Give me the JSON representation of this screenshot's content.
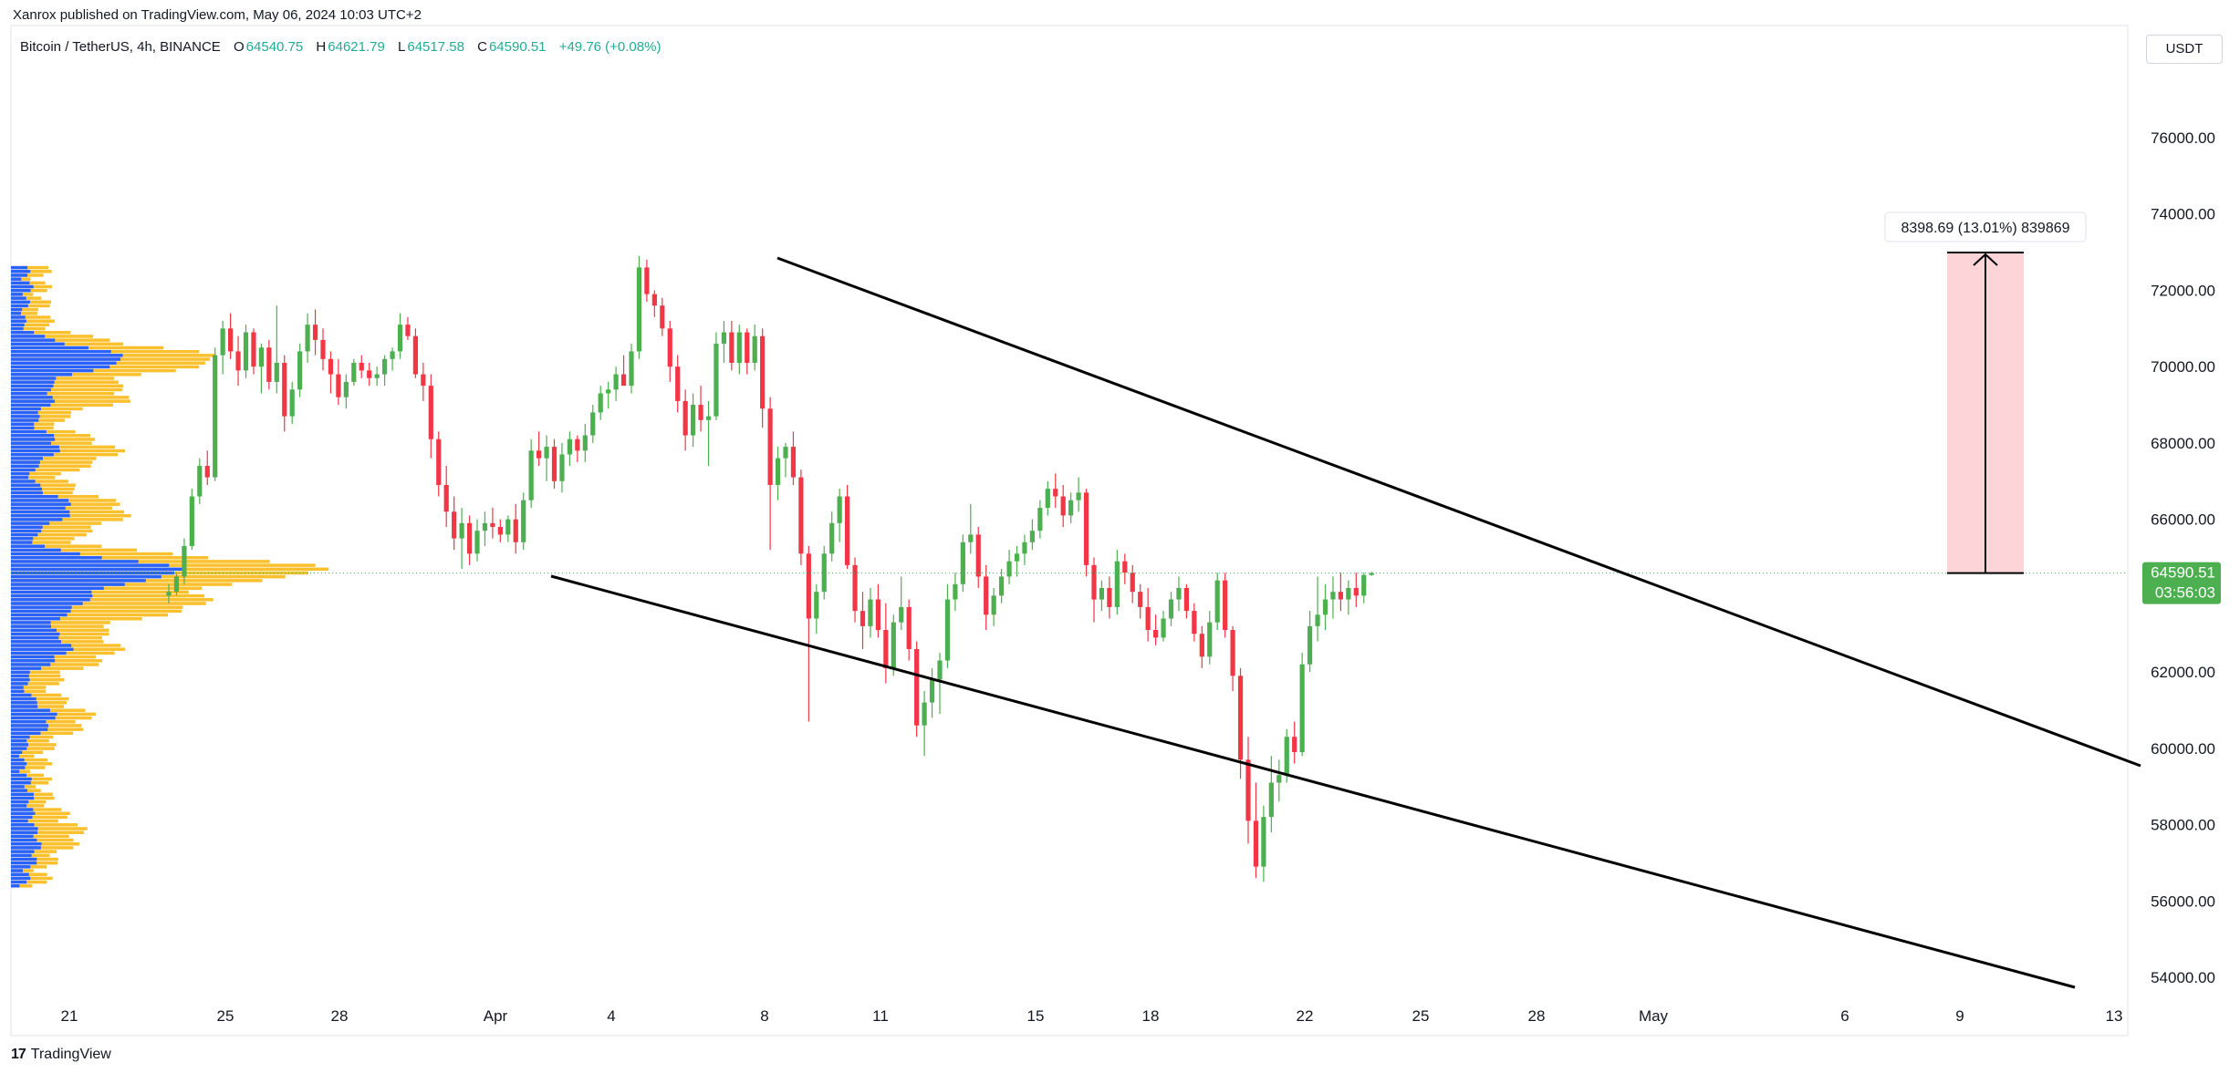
{
  "publisher_line": "Xanrox published on TradingView.com, May 06, 2024 10:03 UTC+2",
  "legend": {
    "symbol": "Bitcoin / TetherUS, 4h, BINANCE",
    "open_label": "O",
    "open": "64540.75",
    "high_label": "H",
    "high": "64621.79",
    "low_label": "L",
    "low": "64517.58",
    "close_label": "C",
    "close": "64590.51",
    "change": "+49.76 (+0.08%)"
  },
  "currency_button": "USDT",
  "footer_brand": "TradingView",
  "colors": {
    "up": "#22ab94",
    "up_candle": "#4caf50",
    "down_candle": "#f23645",
    "volume_profile_up": "#2962ff",
    "volume_profile_down": "#fbc02d",
    "measure_fill": "#fdd4d8",
    "price_tag": "#4caf50",
    "trendline": "#000000"
  },
  "chart_data": {
    "type": "candlestick",
    "timeframe": "4h",
    "y_axis": {
      "ticks": [
        "76000.00",
        "74000.00",
        "72000.00",
        "70000.00",
        "68000.00",
        "66000.00",
        "62000.00",
        "60000.00",
        "58000.00",
        "56000.00",
        "54000.00"
      ],
      "min": 53500,
      "max": 78000
    },
    "x_axis": {
      "ticks": [
        "21",
        "25",
        "28",
        "Apr",
        "4",
        "8",
        "11",
        "15",
        "18",
        "22",
        "25",
        "28",
        "May",
        "6",
        "9",
        "13"
      ]
    },
    "last_price": {
      "label": "64590.51",
      "countdown": "03:56:03",
      "value": 64590.51
    },
    "measure": {
      "label": "8398.69 (13.01%) 839869",
      "from": 64590.51,
      "to": 72989.2
    },
    "trendlines": [
      {
        "name": "upper-channel",
        "points": [
          [
            8.3,
            72900
          ],
          [
            24.0,
            66800
          ],
          [
            6.9,
            63200
          ],
          [
            10.2,
            59600
          ]
        ]
      },
      {
        "name": "lower-channel",
        "points": [
          [
            2.6,
            64500
          ],
          [
            18.2,
            60000
          ],
          [
            3.2,
            56600
          ],
          [
            12.7,
            53700
          ]
        ]
      }
    ],
    "candles": [
      [
        64000,
        64300,
        63800,
        64100
      ],
      [
        64100,
        64600,
        64000,
        64500
      ],
      [
        64500,
        65500,
        64300,
        65300
      ],
      [
        65300,
        66800,
        65200,
        66600
      ],
      [
        66600,
        67600,
        66400,
        67400
      ],
      [
        67400,
        67800,
        66900,
        67100
      ],
      [
        67100,
        70500,
        67000,
        70300
      ],
      [
        70300,
        71200,
        69800,
        71000
      ],
      [
        71000,
        71400,
        70200,
        70400
      ],
      [
        70400,
        70800,
        69500,
        69900
      ],
      [
        69900,
        71100,
        69700,
        70900
      ],
      [
        70900,
        71000,
        69800,
        70000
      ],
      [
        70000,
        70600,
        69300,
        70500
      ],
      [
        70500,
        70700,
        69400,
        69600
      ],
      [
        69600,
        71600,
        69300,
        70100
      ],
      [
        70100,
        70300,
        68300,
        68700
      ],
      [
        68700,
        69600,
        68500,
        69400
      ],
      [
        69400,
        70600,
        69200,
        70400
      ],
      [
        70400,
        71400,
        70100,
        71100
      ],
      [
        71100,
        71500,
        70300,
        70700
      ],
      [
        70700,
        71000,
        69900,
        70200
      ],
      [
        70200,
        70400,
        69300,
        69800
      ],
      [
        69800,
        70200,
        69000,
        69200
      ],
      [
        69200,
        69800,
        68900,
        69600
      ],
      [
        69600,
        70200,
        69500,
        70100
      ],
      [
        70100,
        70300,
        69700,
        69900
      ],
      [
        69900,
        70100,
        69500,
        69700
      ],
      [
        69700,
        70000,
        69500,
        69800
      ],
      [
        69800,
        70300,
        69500,
        70200
      ],
      [
        70200,
        70500,
        69900,
        70400
      ],
      [
        70400,
        71400,
        70200,
        71100
      ],
      [
        71100,
        71300,
        70700,
        70800
      ],
      [
        70800,
        71000,
        69700,
        69800
      ],
      [
        69800,
        70100,
        69100,
        69500
      ],
      [
        69500,
        69800,
        67600,
        68100
      ],
      [
        68100,
        68300,
        66600,
        66900
      ],
      [
        66900,
        67400,
        65800,
        66200
      ],
      [
        66200,
        66600,
        65200,
        65500
      ],
      [
        65500,
        66300,
        64700,
        65900
      ],
      [
        65900,
        66100,
        64800,
        65100
      ],
      [
        65100,
        66000,
        64900,
        65700
      ],
      [
        65700,
        66200,
        65300,
        65900
      ],
      [
        65900,
        66300,
        65500,
        65800
      ],
      [
        65800,
        66000,
        65400,
        65600
      ],
      [
        65600,
        66100,
        65400,
        66000
      ],
      [
        66000,
        66400,
        65100,
        65400
      ],
      [
        65400,
        66700,
        65200,
        66500
      ],
      [
        66500,
        68100,
        66300,
        67800
      ],
      [
        67800,
        68300,
        67400,
        67600
      ],
      [
        67600,
        68200,
        67000,
        67900
      ],
      [
        67900,
        68100,
        66800,
        67000
      ],
      [
        67000,
        68000,
        66700,
        67700
      ],
      [
        67700,
        68300,
        67400,
        68100
      ],
      [
        68100,
        68200,
        67500,
        67800
      ],
      [
        67800,
        68500,
        67500,
        68200
      ],
      [
        68200,
        69000,
        68000,
        68800
      ],
      [
        68800,
        69500,
        68600,
        69300
      ],
      [
        69300,
        69600,
        68900,
        69400
      ],
      [
        69400,
        70000,
        69100,
        69800
      ],
      [
        69800,
        70300,
        69500,
        69500
      ],
      [
        69500,
        70600,
        69300,
        70400
      ],
      [
        70400,
        72900,
        70200,
        72600
      ],
      [
        72600,
        72800,
        71700,
        71900
      ],
      [
        71900,
        72000,
        71300,
        71600
      ],
      [
        71600,
        71800,
        70800,
        71000
      ],
      [
        71000,
        71200,
        69600,
        70000
      ],
      [
        70000,
        70300,
        68800,
        69100
      ],
      [
        69100,
        69400,
        67800,
        68200
      ],
      [
        68200,
        69300,
        67900,
        69000
      ],
      [
        69000,
        69500,
        68300,
        68600
      ],
      [
        68600,
        69100,
        67400,
        68700
      ],
      [
        68700,
        70900,
        68600,
        70600
      ],
      [
        70600,
        71200,
        70100,
        70900
      ],
      [
        70900,
        71200,
        69900,
        70100
      ],
      [
        70100,
        71100,
        69800,
        70900
      ],
      [
        70900,
        71000,
        69800,
        70100
      ],
      [
        70100,
        71100,
        69900,
        70800
      ],
      [
        70800,
        71000,
        68400,
        68900
      ],
      [
        68900,
        69200,
        65200,
        66900
      ],
      [
        66900,
        67900,
        66500,
        67600
      ],
      [
        67600,
        68000,
        67100,
        67900
      ],
      [
        67900,
        68300,
        66900,
        67100
      ],
      [
        67100,
        67300,
        64800,
        65100
      ],
      [
        65100,
        65300,
        60700,
        63400
      ],
      [
        63400,
        64300,
        63000,
        64100
      ],
      [
        64100,
        65300,
        63900,
        65100
      ],
      [
        65100,
        66200,
        64900,
        65900
      ],
      [
        65900,
        66800,
        65400,
        66600
      ],
      [
        66600,
        66900,
        64700,
        64800
      ],
      [
        64800,
        65000,
        63300,
        63600
      ],
      [
        63600,
        64100,
        62600,
        63200
      ],
      [
        63200,
        64200,
        62900,
        63900
      ],
      [
        63900,
        64300,
        62900,
        63100
      ],
      [
        63100,
        63800,
        61700,
        62100
      ],
      [
        62100,
        63500,
        61900,
        63300
      ],
      [
        63300,
        64500,
        63100,
        63700
      ],
      [
        63700,
        63900,
        62300,
        62600
      ],
      [
        62600,
        62800,
        60300,
        60600
      ],
      [
        60600,
        61500,
        59800,
        61200
      ],
      [
        61200,
        62100,
        60800,
        61800
      ],
      [
        61800,
        62500,
        60900,
        62300
      ],
      [
        62300,
        64300,
        62100,
        63900
      ],
      [
        63900,
        64600,
        63600,
        64300
      ],
      [
        64300,
        65600,
        64100,
        65400
      ],
      [
        65400,
        66400,
        65100,
        65600
      ],
      [
        65600,
        65800,
        64200,
        64500
      ],
      [
        64500,
        64800,
        63100,
        63500
      ],
      [
        63500,
        64200,
        63200,
        64000
      ],
      [
        64000,
        64700,
        63800,
        64500
      ],
      [
        64500,
        65200,
        64300,
        64900
      ],
      [
        64900,
        65300,
        64500,
        65100
      ],
      [
        65100,
        65600,
        64800,
        65400
      ],
      [
        65400,
        66000,
        65200,
        65700
      ],
      [
        65700,
        66500,
        65500,
        66300
      ],
      [
        66300,
        67000,
        66100,
        66800
      ],
      [
        66800,
        67200,
        66300,
        66600
      ],
      [
        66600,
        66900,
        65800,
        66100
      ],
      [
        66100,
        66700,
        65900,
        66500
      ],
      [
        66500,
        67100,
        66200,
        66700
      ],
      [
        66700,
        66800,
        64500,
        64800
      ],
      [
        64800,
        65000,
        63300,
        63900
      ],
      [
        63900,
        64400,
        63600,
        64200
      ],
      [
        64200,
        64500,
        63400,
        63700
      ],
      [
        63700,
        65200,
        63500,
        64900
      ],
      [
        64900,
        65100,
        64300,
        64600
      ],
      [
        64600,
        64800,
        63800,
        64100
      ],
      [
        64100,
        64300,
        63400,
        63700
      ],
      [
        63700,
        64200,
        62800,
        63100
      ],
      [
        63100,
        63500,
        62700,
        62900
      ],
      [
        62900,
        63600,
        62800,
        63400
      ],
      [
        63400,
        64100,
        63200,
        63900
      ],
      [
        63900,
        64500,
        63600,
        64200
      ],
      [
        64200,
        64300,
        63400,
        63600
      ],
      [
        63600,
        63800,
        62800,
        63000
      ],
      [
        63000,
        63200,
        62100,
        62400
      ],
      [
        62400,
        63600,
        62200,
        63300
      ],
      [
        63300,
        64600,
        63100,
        64400
      ],
      [
        64400,
        64600,
        62900,
        63100
      ],
      [
        63100,
        63200,
        61500,
        61900
      ],
      [
        61900,
        62100,
        59200,
        59700
      ],
      [
        59700,
        60300,
        57500,
        58100
      ],
      [
        58100,
        59100,
        56600,
        56900
      ],
      [
        56900,
        58500,
        56500,
        58200
      ],
      [
        58200,
        59800,
        57800,
        59100
      ],
      [
        59100,
        59700,
        58600,
        59300
      ],
      [
        59300,
        60500,
        59100,
        60300
      ],
      [
        60300,
        60700,
        59600,
        59900
      ],
      [
        59900,
        62500,
        59800,
        62200
      ],
      [
        62200,
        63600,
        62000,
        63200
      ],
      [
        63200,
        64500,
        62800,
        63500
      ],
      [
        63500,
        64300,
        63100,
        63900
      ],
      [
        63900,
        64500,
        63400,
        64100
      ],
      [
        64100,
        64600,
        63600,
        63900
      ],
      [
        63900,
        64400,
        63500,
        64200
      ],
      [
        64200,
        64600,
        63700,
        64000
      ],
      [
        64000,
        64600,
        63800,
        64540.75
      ],
      [
        64540.75,
        64621.79,
        64517.58,
        64590.51
      ]
    ]
  }
}
